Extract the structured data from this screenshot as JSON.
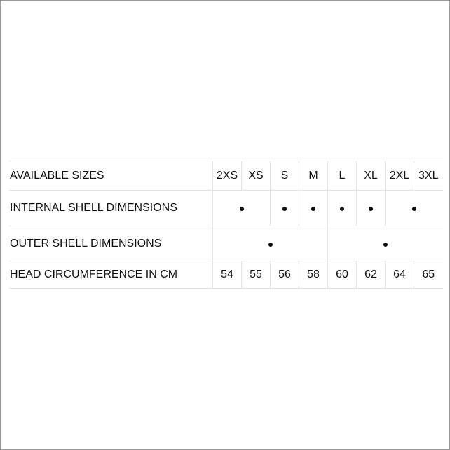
{
  "rows": {
    "sizes_label": "AVAILABLE SIZES",
    "sizes": [
      "2XS",
      "XS",
      "S",
      "M",
      "L",
      "XL",
      "2XL",
      "3XL"
    ],
    "internal_label": "INTERNAL SHELL DIMENSIONS",
    "internal_groups": [
      [
        "2XS",
        "XS"
      ],
      [
        "S"
      ],
      [
        "M"
      ],
      [
        "L"
      ],
      [
        "XL"
      ],
      [
        "2XL",
        "3XL"
      ]
    ],
    "outer_label": "OUTER SHELL DIMENSIONS",
    "outer_groups": [
      [
        "2XS",
        "XS",
        "S",
        "M"
      ],
      [
        "L",
        "XL",
        "2XL",
        "3XL"
      ]
    ],
    "head_label": "HEAD CIRCUMFERENCE IN CM",
    "head": [
      "54",
      "55",
      "56",
      "58",
      "60",
      "62",
      "64",
      "65"
    ]
  }
}
